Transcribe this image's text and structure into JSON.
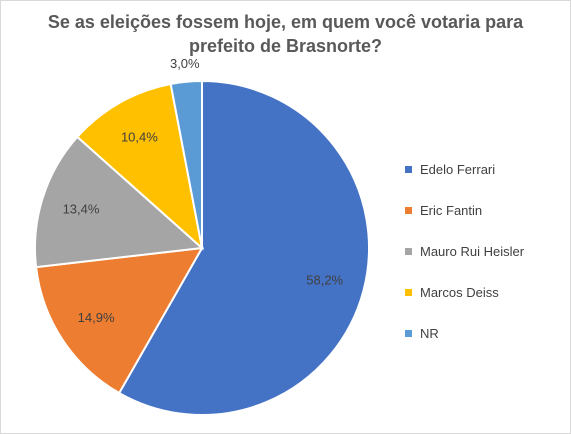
{
  "chart_data": {
    "type": "pie",
    "title_lines": [
      "Se as eleições fossem hoje, em quem você votaria para",
      "prefeito de Brasnorte?"
    ],
    "slices": [
      {
        "name": "Edelo Ferrari",
        "value": 58.2,
        "label": "58,2%",
        "color": "#4472c4"
      },
      {
        "name": "Eric Fantin",
        "value": 14.9,
        "label": "14,9%",
        "color": "#ed7d31"
      },
      {
        "name": "Mauro Rui Heisler",
        "value": 13.4,
        "label": "13,4%",
        "color": "#a5a5a5"
      },
      {
        "name": "Marcos Deiss",
        "value": 10.4,
        "label": "10,4%",
        "color": "#ffc000"
      },
      {
        "name": "NR",
        "value": 3.0,
        "label": "3,0%",
        "color": "#5b9bd5"
      }
    ],
    "legend_position": "right"
  }
}
